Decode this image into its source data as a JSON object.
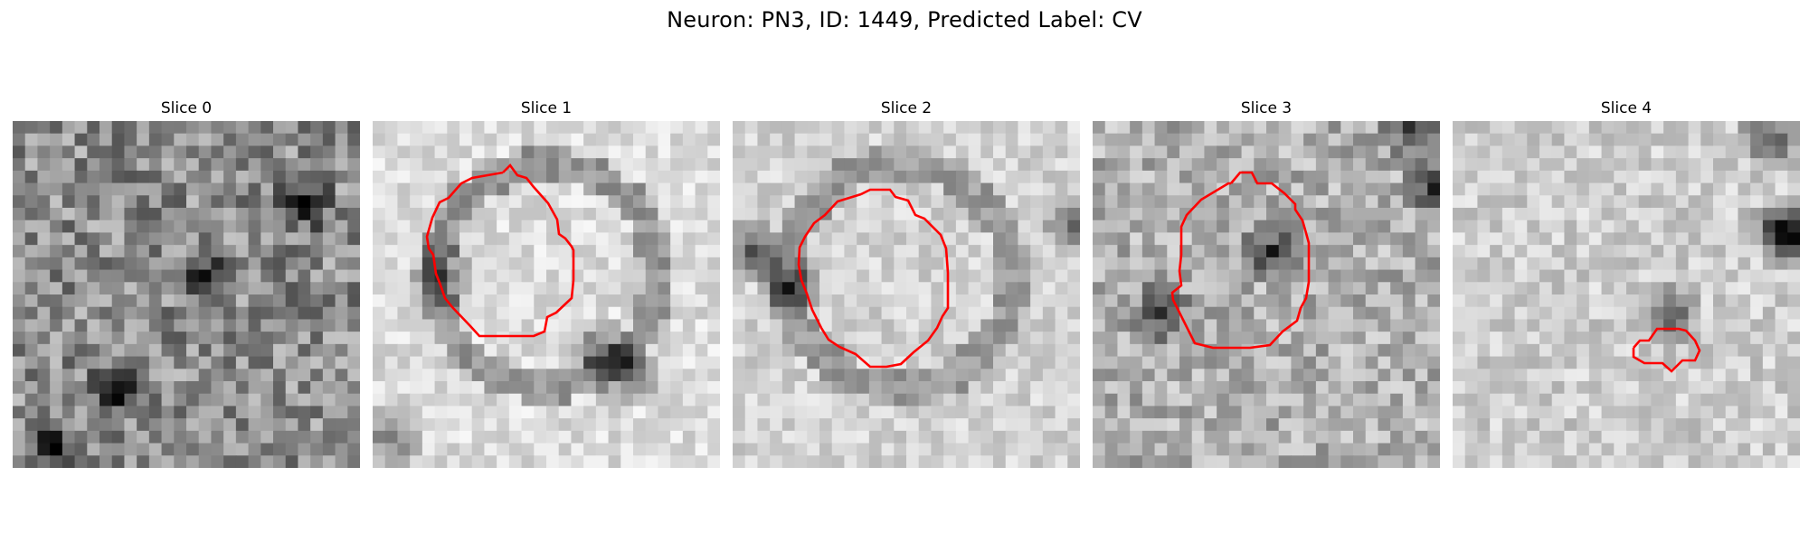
{
  "figure": {
    "title": "Neuron: PN3, ID: 1449, Predicted Label: CV"
  },
  "slices": [
    {
      "title": "Slice 0",
      "has_contour": false
    },
    {
      "title": "Slice 1",
      "has_contour": true
    },
    {
      "title": "Slice 2",
      "has_contour": true
    },
    {
      "title": "Slice 3",
      "has_contour": true
    },
    {
      "title": "Slice 4",
      "has_contour": true
    }
  ],
  "colors": {
    "contour": "#ff0000",
    "colormap": "grayscale"
  }
}
